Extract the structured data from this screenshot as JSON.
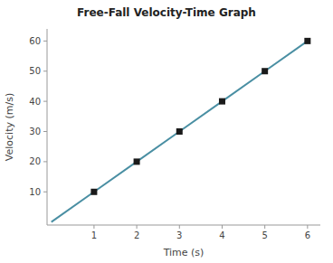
{
  "chart_data": {
    "type": "line",
    "title": "Free-Fall Velocity-Time Graph",
    "x_label": "Time (s)",
    "y_label": "Velocity (m/s)",
    "x": [
      0,
      1,
      2,
      3,
      4,
      5,
      6
    ],
    "values": [
      0,
      10,
      20,
      30,
      40,
      50,
      60
    ],
    "color": "#4a8fa3",
    "marker": "square",
    "xlim": [
      -0.1,
      6.3
    ],
    "ylim": [
      -1,
      64
    ],
    "xticks": [
      1,
      2,
      3,
      4,
      5,
      6
    ],
    "yticks": [
      10,
      20,
      30,
      40,
      50,
      60
    ],
    "grid": false
  }
}
